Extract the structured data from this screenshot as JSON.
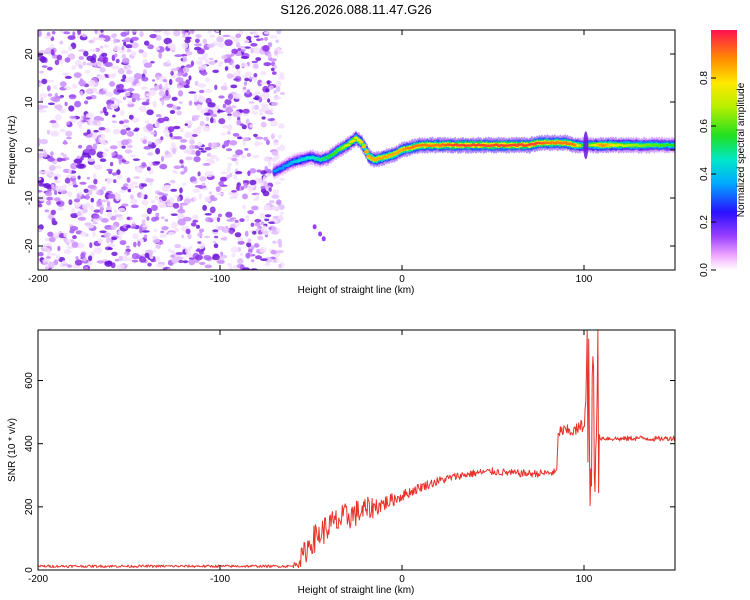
{
  "title": "S126.2026.088.11.47.G26",
  "chart_data": [
    {
      "type": "heatmap",
      "xlabel": "Height of straight line (km)",
      "ylabel": "Frequency (Hz)",
      "xlim": [
        -200,
        150
      ],
      "ylim": [
        -25,
        25
      ],
      "xticks": [
        -200,
        -100,
        0,
        100
      ],
      "xtick_labels": [
        "-200",
        "-100",
        "0",
        "100"
      ],
      "yticks": [
        -20,
        -10,
        0,
        10,
        20
      ],
      "ytick_labels": [
        "-20",
        "-10",
        "0",
        "10",
        "20"
      ],
      "noise_region_x": [
        -200,
        -70
      ],
      "ridge": {
        "x": [
          -70,
          -65,
          -60,
          -55,
          -50,
          -45,
          -40,
          -35,
          -30,
          -25,
          -22,
          -20,
          -18,
          -15,
          -10,
          -5,
          0,
          5,
          10,
          20,
          30,
          40,
          50,
          60,
          70,
          75,
          80,
          85,
          90,
          95,
          100,
          105,
          110,
          120,
          130,
          140,
          150
        ],
        "y": [
          -4.5,
          -3.5,
          -2.5,
          -2.0,
          -1.5,
          -2.0,
          -1.5,
          0.0,
          1.0,
          2.5,
          1.5,
          0.0,
          -1.5,
          -2.0,
          -1.5,
          -1.0,
          0.0,
          0.5,
          1.0,
          1.0,
          1.0,
          1.0,
          1.0,
          1.0,
          1.0,
          1.5,
          1.5,
          1.5,
          1.5,
          1.0,
          1.0,
          1.0,
          1.0,
          1.0,
          1.0,
          1.0,
          1.0
        ],
        "amplitude": [
          0.35,
          0.35,
          0.4,
          0.45,
          0.45,
          0.5,
          0.55,
          0.6,
          0.7,
          0.75,
          0.8,
          0.85,
          0.85,
          0.85,
          0.85,
          0.85,
          0.85,
          0.9,
          0.9,
          0.9,
          0.95,
          0.95,
          0.95,
          0.95,
          0.95,
          0.95,
          0.9,
          0.9,
          0.9,
          0.9,
          0.55,
          0.7,
          0.9,
          0.7,
          0.65,
          0.6,
          0.55
        ]
      },
      "colorbar": {
        "label": "Normalized spectral amplitude",
        "range": [
          0,
          1
        ],
        "ticks": [
          0.0,
          0.2,
          0.4,
          0.6,
          0.8
        ],
        "tick_labels": [
          "0.0",
          "0.2",
          "0.4",
          "0.6",
          "0.8"
        ]
      }
    },
    {
      "type": "line",
      "xlabel": "Height of straight line (km)",
      "ylabel": "SNR (10 * v/v)",
      "xlim": [
        -200,
        150
      ],
      "ylim": [
        0,
        760
      ],
      "xticks": [
        -200,
        -100,
        0,
        100
      ],
      "xtick_labels": [
        "-200",
        "-100",
        "0",
        "100"
      ],
      "yticks": [
        0,
        200,
        400,
        600
      ],
      "ytick_labels": [
        "0",
        "200",
        "400",
        "600"
      ],
      "series": [
        {
          "name": "SNR",
          "color": "#e8322a",
          "x": [
            -200,
            -150,
            -100,
            -60,
            -55,
            -50,
            -40,
            -30,
            -20,
            -10,
            0,
            10,
            20,
            30,
            40,
            50,
            60,
            70,
            80,
            85,
            86,
            90,
            95,
            100,
            102,
            104,
            105,
            106,
            107,
            108,
            110,
            120,
            130,
            140,
            150
          ],
          "values": [
            12,
            12,
            12,
            12,
            40,
            90,
            140,
            170,
            190,
            210,
            235,
            262,
            282,
            297,
            307,
            312,
            307,
            305,
            307,
            310,
            440,
            440,
            440,
            460,
            600,
            250,
            730,
            180,
            760,
            420,
            418,
            415,
            418,
            415,
            418
          ],
          "noise_amplitude": [
            4,
            4,
            4,
            4,
            35,
            45,
            45,
            45,
            40,
            25,
            18,
            15,
            14,
            12,
            12,
            12,
            12,
            12,
            12,
            12,
            20,
            20,
            20,
            25,
            0,
            0,
            0,
            0,
            0,
            10,
            8,
            8,
            8,
            8,
            8
          ]
        }
      ]
    }
  ]
}
